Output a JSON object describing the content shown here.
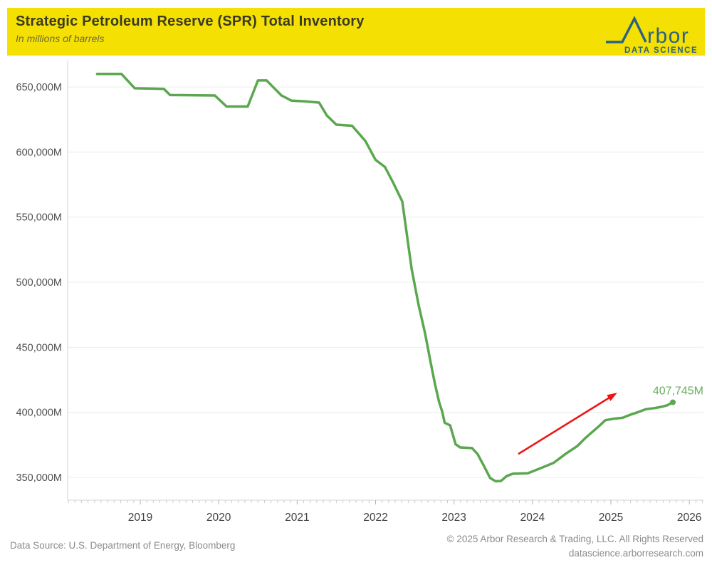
{
  "header": {
    "title": "Strategic Petroleum Reserve (SPR) Total Inventory",
    "subtitle": "In millions of barrels",
    "background_color": "#F5E003",
    "logo": {
      "wordmark_suffix": "rbor",
      "tagline": "DATA SCIENCE",
      "color": "#2A6283"
    }
  },
  "chart_data": {
    "type": "line",
    "title": "Strategic Petroleum Reserve (SPR) Total Inventory",
    "ylabel": "",
    "xlabel": "",
    "unit_suffix": "M",
    "grid": "horizontal",
    "legend_position": "none",
    "xlim": [
      2018.074,
      2026.18
    ],
    "ylim": [
      332500,
      670300
    ],
    "x_ticks": [
      2019,
      2020,
      2021,
      2022,
      2023,
      2024,
      2025,
      2026
    ],
    "y_ticks": [
      {
        "value": 650000,
        "label": "650,000M"
      },
      {
        "value": 600000,
        "label": "600,000M"
      },
      {
        "value": 550000,
        "label": "550,000M"
      },
      {
        "value": 500000,
        "label": "500,000M"
      },
      {
        "value": 450000,
        "label": "450,000M"
      },
      {
        "value": 400000,
        "label": "400,000M"
      },
      {
        "value": 350000,
        "label": "350,000M"
      }
    ],
    "series": [
      {
        "name": "SPR Total Inventory",
        "color": "#5BA74F",
        "points": [
          [
            2018.45,
            660000
          ],
          [
            2018.76,
            660000
          ],
          [
            2018.93,
            649000
          ],
          [
            2019.1,
            648800
          ],
          [
            2019.3,
            648500
          ],
          [
            2019.38,
            643800
          ],
          [
            2019.95,
            643500
          ],
          [
            2020.1,
            635000
          ],
          [
            2020.37,
            635000
          ],
          [
            2020.5,
            655000
          ],
          [
            2020.61,
            655000
          ],
          [
            2020.8,
            643500
          ],
          [
            2020.93,
            639500
          ],
          [
            2021.1,
            639000
          ],
          [
            2021.28,
            638000
          ],
          [
            2021.38,
            628000
          ],
          [
            2021.5,
            621000
          ],
          [
            2021.7,
            620200
          ],
          [
            2021.87,
            608500
          ],
          [
            2022.0,
            594000
          ],
          [
            2022.12,
            588500
          ],
          [
            2022.22,
            577000
          ],
          [
            2022.34,
            562000
          ],
          [
            2022.46,
            510000
          ],
          [
            2022.55,
            482000
          ],
          [
            2022.63,
            461000
          ],
          [
            2022.7,
            439000
          ],
          [
            2022.76,
            421000
          ],
          [
            2022.81,
            408000
          ],
          [
            2022.85,
            400500
          ],
          [
            2022.88,
            392000
          ],
          [
            2022.95,
            390000
          ],
          [
            2023.02,
            375500
          ],
          [
            2023.08,
            373000
          ],
          [
            2023.23,
            372500
          ],
          [
            2023.3,
            368000
          ],
          [
            2023.38,
            359000
          ],
          [
            2023.46,
            349500
          ],
          [
            2023.53,
            347000
          ],
          [
            2023.6,
            347300
          ],
          [
            2023.67,
            351000
          ],
          [
            2023.75,
            352800
          ],
          [
            2023.94,
            353200
          ],
          [
            2024.1,
            357000
          ],
          [
            2024.27,
            361200
          ],
          [
            2024.42,
            368000
          ],
          [
            2024.57,
            374000
          ],
          [
            2024.67,
            380000
          ],
          [
            2024.85,
            389500
          ],
          [
            2024.93,
            394000
          ],
          [
            2025.05,
            395200
          ],
          [
            2025.15,
            395800
          ],
          [
            2025.24,
            398000
          ],
          [
            2025.35,
            400200
          ],
          [
            2025.44,
            402300
          ],
          [
            2025.56,
            403300
          ],
          [
            2025.65,
            404300
          ],
          [
            2025.72,
            405500
          ],
          [
            2025.79,
            407745
          ]
        ]
      }
    ],
    "end_label": {
      "text": "407,745M",
      "value": 407745,
      "color": "#6BAD60"
    },
    "annotation_arrow": {
      "color": "#ED1414",
      "from": {
        "year": 2023.82,
        "value": 368000
      },
      "to": {
        "year": 2025.08,
        "value": 415000
      }
    }
  },
  "footer": {
    "source": "Data Source: U.S. Department of Energy, Bloomberg",
    "copyright": "© 2025 Arbor Research & Trading, LLC. All Rights Reserved",
    "website": "datascience.arborresearch.com"
  }
}
